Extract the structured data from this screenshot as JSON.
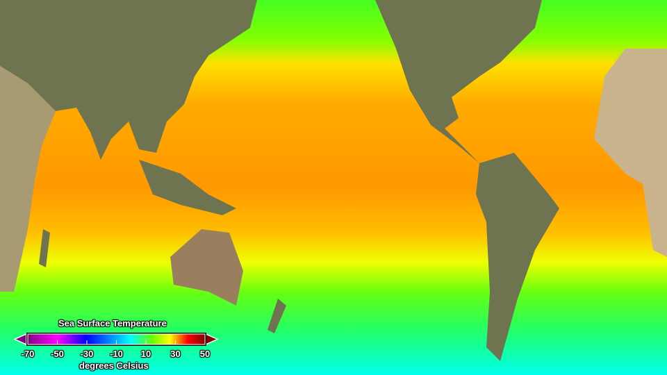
{
  "legend": {
    "title": "Sea Surface Temperature",
    "unit": "degrees Celsius",
    "ticks": [
      "-70",
      "-50",
      "-30",
      "-10",
      "10",
      "30",
      "50"
    ],
    "range": [
      -70,
      50
    ],
    "colors": [
      "#800080",
      "#ff00ff",
      "#0000ff",
      "#00ffff",
      "#00ff00",
      "#ffff00",
      "#ff0000",
      "#800000"
    ]
  },
  "colors": {
    "land": "#6f7450",
    "desert": "#c9b48e",
    "ocean_cold": "#00ffee",
    "ocean_cool": "#44ff22",
    "ocean_mild": "#ccff00",
    "ocean_warm": "#ffd000",
    "ocean_hot": "#ff9a00"
  }
}
